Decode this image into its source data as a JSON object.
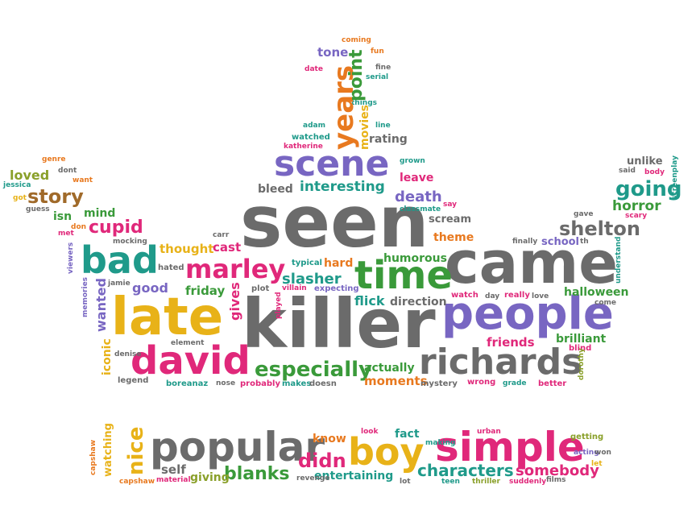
{
  "cloud": {
    "colors": {
      "gray": "#6b6b6b",
      "orange": "#e8791f",
      "gold": "#e8b218",
      "green": "#3a9a3a",
      "purple": "#7866c2",
      "pink": "#e0287a",
      "teal": "#1f9a8a",
      "brown": "#a06a2a",
      "olive": "#8aa02a",
      "blue": "#5a6ab0"
    },
    "words": [
      {
        "text": "seen",
        "color": "gray"
      },
      {
        "text": "came",
        "color": "gray"
      },
      {
        "text": "killer",
        "color": "gray"
      },
      {
        "text": "late",
        "color": "gold"
      },
      {
        "text": "people",
        "color": "purple"
      },
      {
        "text": "popular",
        "color": "gray"
      },
      {
        "text": "simple",
        "color": "pink"
      },
      {
        "text": "david",
        "color": "pink"
      },
      {
        "text": "richards",
        "color": "gray"
      },
      {
        "text": "boy",
        "color": "gold"
      },
      {
        "text": "time",
        "color": "green"
      },
      {
        "text": "bad",
        "color": "teal"
      },
      {
        "text": "scene",
        "color": "purple"
      },
      {
        "text": "years",
        "color": "orange"
      },
      {
        "text": "marley",
        "color": "pink"
      },
      {
        "text": "especially",
        "color": "green"
      },
      {
        "text": "shelton",
        "color": "gray"
      },
      {
        "text": "story",
        "color": "brown"
      },
      {
        "text": "going",
        "color": "teal"
      },
      {
        "text": "cupid",
        "color": "pink"
      },
      {
        "text": "nice",
        "color": "gold"
      },
      {
        "text": "point",
        "color": "green"
      },
      {
        "text": "blanks",
        "color": "green"
      },
      {
        "text": "characters",
        "color": "teal"
      },
      {
        "text": "somebody",
        "color": "pink"
      },
      {
        "text": "didn",
        "color": "pink"
      },
      {
        "text": "interesting",
        "color": "teal"
      },
      {
        "text": "death",
        "color": "purple"
      },
      {
        "text": "horror",
        "color": "green"
      },
      {
        "text": "wanted",
        "color": "purple"
      },
      {
        "text": "slasher",
        "color": "teal"
      },
      {
        "text": "halloween",
        "color": "green"
      },
      {
        "text": "friends",
        "color": "pink"
      },
      {
        "text": "brilliant",
        "color": "green"
      },
      {
        "text": "humorous",
        "color": "green"
      },
      {
        "text": "moments",
        "color": "orange"
      },
      {
        "text": "actually",
        "color": "green"
      },
      {
        "text": "direction",
        "color": "gray"
      },
      {
        "text": "flick",
        "color": "teal"
      },
      {
        "text": "iconic",
        "color": "gold"
      },
      {
        "text": "gives",
        "color": "pink"
      },
      {
        "text": "good",
        "color": "purple"
      },
      {
        "text": "friday",
        "color": "green"
      },
      {
        "text": "thought",
        "color": "gold"
      },
      {
        "text": "cast",
        "color": "pink"
      },
      {
        "text": "loved",
        "color": "olive"
      },
      {
        "text": "mind",
        "color": "green"
      },
      {
        "text": "isn",
        "color": "green"
      },
      {
        "text": "bleed",
        "color": "gray"
      },
      {
        "text": "leave",
        "color": "pink"
      },
      {
        "text": "theme",
        "color": "orange"
      },
      {
        "text": "scream",
        "color": "gray"
      },
      {
        "text": "hard",
        "color": "orange"
      },
      {
        "text": "school",
        "color": "purple"
      },
      {
        "text": "tone",
        "color": "purple"
      },
      {
        "text": "movies",
        "color": "gold"
      },
      {
        "text": "rating",
        "color": "gray"
      },
      {
        "text": "watching",
        "color": "gold"
      },
      {
        "text": "self",
        "color": "gray"
      },
      {
        "text": "giving",
        "color": "olive"
      },
      {
        "text": "entertaining",
        "color": "teal"
      },
      {
        "text": "know",
        "color": "orange"
      },
      {
        "text": "fact",
        "color": "teal"
      },
      {
        "text": "unlike",
        "color": "gray"
      },
      {
        "text": "watch",
        "color": "pink"
      },
      {
        "text": "really",
        "color": "pink"
      },
      {
        "text": "mystery",
        "color": "gray"
      },
      {
        "text": "wrong",
        "color": "pink"
      },
      {
        "text": "better",
        "color": "pink"
      },
      {
        "text": "probably",
        "color": "pink"
      },
      {
        "text": "makes",
        "color": "teal"
      },
      {
        "text": "doesn",
        "color": "gray"
      },
      {
        "text": "boreanaz",
        "color": "teal"
      },
      {
        "text": "legend",
        "color": "gray"
      },
      {
        "text": "nose",
        "color": "gray"
      },
      {
        "text": "element",
        "color": "gray"
      },
      {
        "text": "denise",
        "color": "gray"
      },
      {
        "text": "blind",
        "color": "pink"
      },
      {
        "text": "typical",
        "color": "teal"
      },
      {
        "text": "villain",
        "color": "pink"
      },
      {
        "text": "expecting",
        "color": "purple"
      },
      {
        "text": "plot",
        "color": "gray"
      },
      {
        "text": "played",
        "color": "pink"
      },
      {
        "text": "hated",
        "color": "gray"
      },
      {
        "text": "jamie",
        "color": "gray"
      },
      {
        "text": "mocking",
        "color": "gray"
      },
      {
        "text": "memories",
        "color": "purple"
      },
      {
        "text": "viewers",
        "color": "purple"
      },
      {
        "text": "guess",
        "color": "gray"
      },
      {
        "text": "met",
        "color": "pink"
      },
      {
        "text": "don",
        "color": "orange"
      },
      {
        "text": "got",
        "color": "gold"
      },
      {
        "text": "jessica",
        "color": "teal"
      },
      {
        "text": "want",
        "color": "orange"
      },
      {
        "text": "dont",
        "color": "gray"
      },
      {
        "text": "genre",
        "color": "orange"
      },
      {
        "text": "carr",
        "color": "gray"
      },
      {
        "text": "classmate",
        "color": "teal"
      },
      {
        "text": "say",
        "color": "pink"
      },
      {
        "text": "grown",
        "color": "teal"
      },
      {
        "text": "line",
        "color": "teal"
      },
      {
        "text": "adam",
        "color": "teal"
      },
      {
        "text": "watched",
        "color": "teal"
      },
      {
        "text": "katherine",
        "color": "pink"
      },
      {
        "text": "things",
        "color": "teal"
      },
      {
        "text": "serial",
        "color": "teal"
      },
      {
        "text": "fine",
        "color": "gray"
      },
      {
        "text": "date",
        "color": "pink"
      },
      {
        "text": "coming",
        "color": "orange"
      },
      {
        "text": "fun",
        "color": "orange"
      },
      {
        "text": "said",
        "color": "gray"
      },
      {
        "text": "body",
        "color": "pink"
      },
      {
        "text": "screenplay",
        "color": "teal"
      },
      {
        "text": "scary",
        "color": "pink"
      },
      {
        "text": "gave",
        "color": "gray"
      },
      {
        "text": "finally",
        "color": "gray"
      },
      {
        "text": "th",
        "color": "gray"
      },
      {
        "text": "understand",
        "color": "teal"
      },
      {
        "text": "come",
        "color": "gray"
      },
      {
        "text": "day",
        "color": "gray"
      },
      {
        "text": "love",
        "color": "gray"
      },
      {
        "text": "grade",
        "color": "teal"
      },
      {
        "text": "dorothy",
        "color": "olive"
      },
      {
        "text": "capshaw",
        "color": "orange"
      },
      {
        "text": "material",
        "color": "pink"
      },
      {
        "text": "revenge",
        "color": "gray"
      },
      {
        "text": "look",
        "color": "pink"
      },
      {
        "text": "making",
        "color": "teal"
      },
      {
        "text": "lot",
        "color": "gray"
      },
      {
        "text": "teen",
        "color": "teal"
      },
      {
        "text": "thriller",
        "color": "olive"
      },
      {
        "text": "suddenly",
        "color": "pink"
      },
      {
        "text": "urban",
        "color": "pink"
      },
      {
        "text": "getting",
        "color": "olive"
      },
      {
        "text": "acting",
        "color": "purple"
      },
      {
        "text": "won",
        "color": "gray"
      },
      {
        "text": "let",
        "color": "gold"
      },
      {
        "text": "films",
        "color": "gray"
      },
      {
        "text": "looking",
        "color": "gray"
      }
    ]
  }
}
